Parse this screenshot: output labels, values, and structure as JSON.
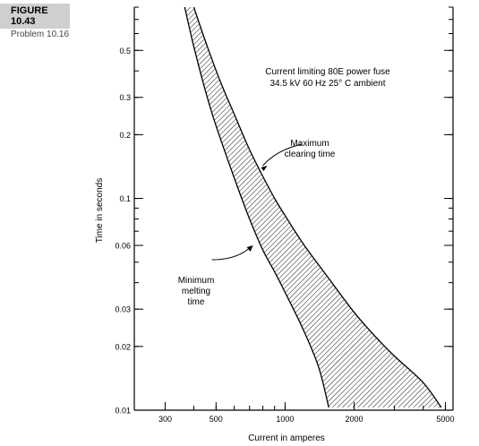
{
  "figure": {
    "label": "FIGURE 10.43",
    "caption": "Problem 10.16"
  },
  "chart_data": {
    "type": "area",
    "title": "Current limiting 80E power fuse",
    "subtitle": "34.5 kV 60 Hz 25° C ambient",
    "xlabel": "Current in amperes",
    "ylabel": "Time in seconds",
    "xscale": "log",
    "yscale": "log",
    "xlim": [
      220,
      5400
    ],
    "ylim": [
      0.01,
      0.8
    ],
    "x_ticks": [
      300,
      500,
      1000,
      2000,
      5000
    ],
    "x_tick_labels": [
      "300",
      "500",
      "1000",
      "2000",
      "5000"
    ],
    "y_ticks": [
      0.01,
      0.02,
      0.03,
      0.06,
      0.1,
      0.2,
      0.3,
      0.5
    ],
    "y_tick_labels": [
      "0.01",
      "0.02",
      "0.03",
      "0.06",
      "0.1",
      "0.2",
      "0.3",
      "0.5"
    ],
    "grid": false,
    "series": [
      {
        "name": "Maximum clearing time",
        "x": [
          400,
          450,
          520,
          600,
          700,
          800,
          900,
          1000,
          1200,
          1500,
          2000,
          2500,
          3000,
          4000,
          4800
        ],
        "y": [
          0.8,
          0.55,
          0.36,
          0.25,
          0.17,
          0.127,
          0.1,
          0.083,
          0.061,
          0.044,
          0.029,
          0.022,
          0.018,
          0.0135,
          0.0103
        ]
      },
      {
        "name": "Minimum melting time",
        "x": [
          365,
          400,
          450,
          500,
          600,
          700,
          800,
          900,
          1000,
          1200,
          1400,
          1550
        ],
        "y": [
          0.8,
          0.52,
          0.32,
          0.22,
          0.125,
          0.08,
          0.057,
          0.045,
          0.036,
          0.024,
          0.016,
          0.0103
        ]
      }
    ],
    "annotations": [
      {
        "lines": [
          "Maximum",
          "clearing time"
        ],
        "target_x": 785,
        "target_y": 0.14
      },
      {
        "lines": [
          "Minimum",
          "melting",
          "time"
        ],
        "target_x": 725,
        "target_y": 0.06
      }
    ]
  }
}
